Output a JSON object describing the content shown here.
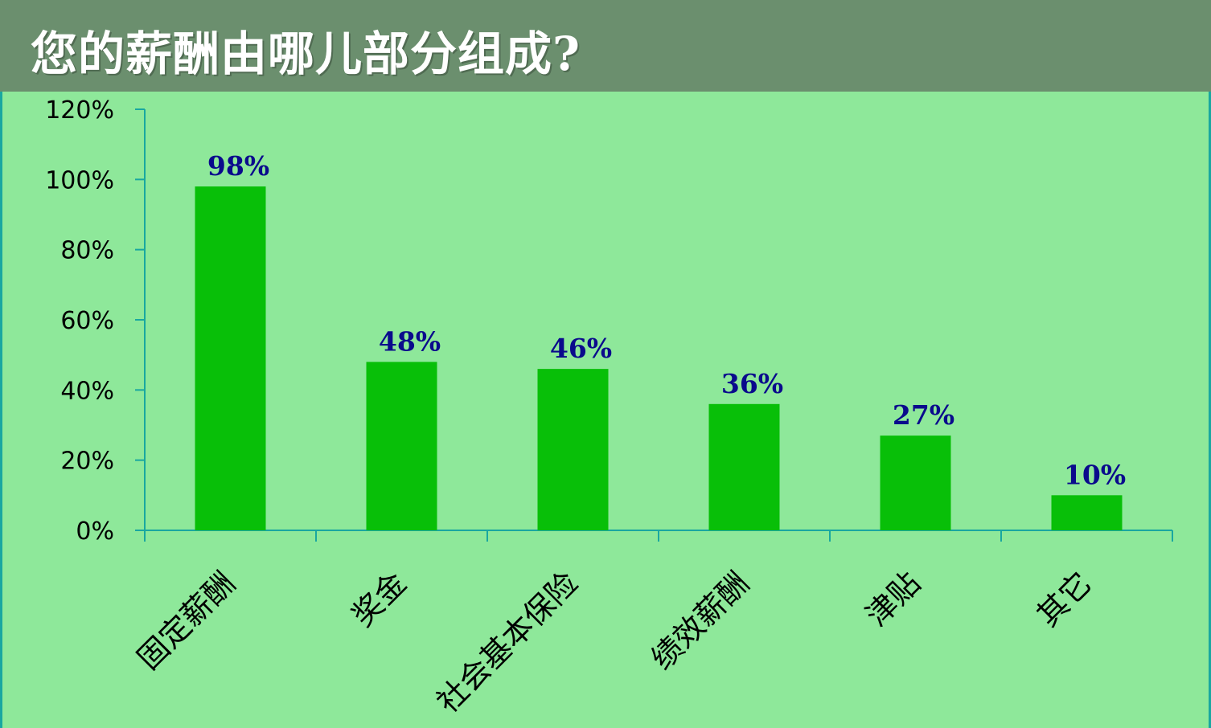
{
  "header": {
    "title": "您的薪酬由哪儿部分组成?"
  },
  "colors": {
    "background": "#8ee89a",
    "header_bg": "#6b8f6e",
    "bar": "#08bf08",
    "axis": "#19a7a0",
    "data_label": "#0a0a8c"
  },
  "chart_data": {
    "type": "bar",
    "title": "",
    "xlabel": "",
    "ylabel": "",
    "categories": [
      "固定薪酬",
      "奖金",
      "社会基本保险",
      "绩效薪酬",
      "津贴",
      "其它"
    ],
    "values": [
      98,
      48,
      46,
      36,
      27,
      10
    ],
    "value_labels": [
      "98%",
      "48%",
      "46%",
      "36%",
      "27%",
      "10%"
    ],
    "ylim": [
      0,
      120
    ],
    "yticks": [
      0,
      20,
      40,
      60,
      80,
      100,
      120
    ],
    "ytick_labels": [
      "0%",
      "20%",
      "40%",
      "60%",
      "80%",
      "100%",
      "120%"
    ],
    "grid": false,
    "legend": "none"
  }
}
